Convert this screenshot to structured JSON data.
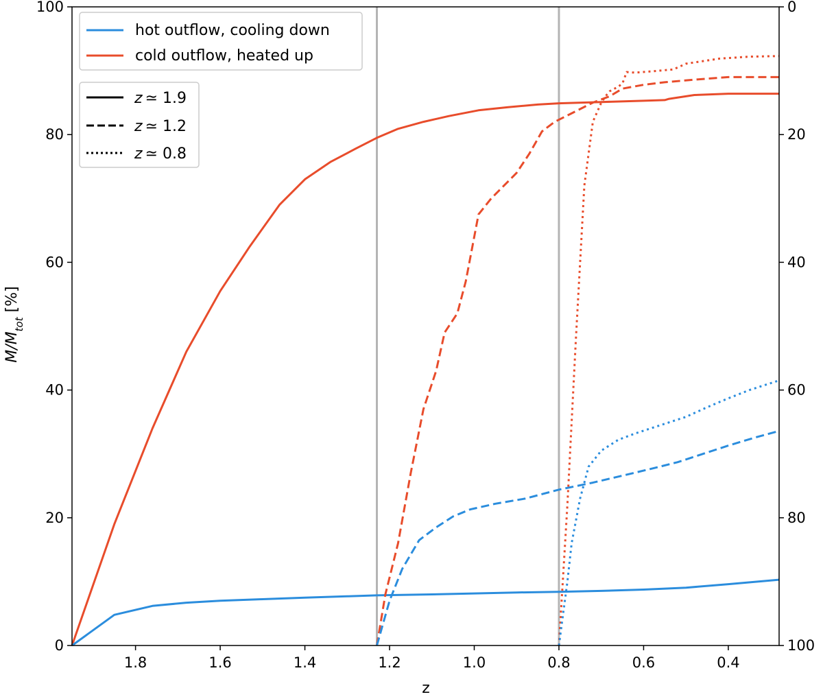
{
  "chart_data": {
    "type": "line",
    "xlabel": "z",
    "ylabel_main": "M/M",
    "ylabel_sub": "tot",
    "ylabel_unit": " [%]",
    "xlim": [
      1.95,
      0.28
    ],
    "ylim": [
      0,
      100
    ],
    "right_ylim": [
      100,
      0
    ],
    "x_ticks": [
      1.8,
      1.6,
      1.4,
      1.2,
      1.0,
      0.8,
      0.6,
      0.4
    ],
    "x_tick_labels": [
      "1.8",
      "1.6",
      "1.4",
      "1.2",
      "1.0",
      "0.8",
      "0.6",
      "0.4"
    ],
    "y_ticks": [
      0,
      20,
      40,
      60,
      80,
      100
    ],
    "y_tick_labels": [
      "0",
      "20",
      "40",
      "60",
      "80",
      "100"
    ],
    "right_y_ticks": [
      100,
      80,
      60,
      40,
      20,
      0
    ],
    "right_y_tick_labels": [
      "100",
      "80",
      "60",
      "40",
      "20",
      "0"
    ],
    "vlines": [
      1.23,
      0.8
    ],
    "grid": false,
    "colors": {
      "hot": "#2b8ddd",
      "cold": "#e84c2b",
      "vline": "#b4b4b4"
    },
    "legend_colors": {
      "placement": "top-left",
      "entries": [
        {
          "label": "hot outflow, cooling down",
          "color": "#2b8ddd"
        },
        {
          "label": "cold outflow, heated up",
          "color": "#e84c2b"
        }
      ]
    },
    "legend_styles": {
      "placement": "upper-left, below color legend",
      "entries": [
        {
          "symbol": "z",
          "label": "≃ 1.9",
          "dash": "solid"
        },
        {
          "symbol": "z",
          "label": "≃ 1.2",
          "dash": "dashed"
        },
        {
          "symbol": "z",
          "label": "≃ 0.8",
          "dash": "dotted"
        }
      ]
    },
    "series": [
      {
        "color_key": "cold",
        "dash": "solid",
        "x": [
          1.95,
          1.85,
          1.76,
          1.68,
          1.6,
          1.53,
          1.46,
          1.4,
          1.34,
          1.28,
          1.23,
          1.18,
          1.12,
          1.06,
          0.99,
          0.92,
          0.85,
          0.8,
          0.7,
          0.6,
          0.55,
          0.54,
          0.48,
          0.4,
          0.28
        ],
        "y": [
          0,
          19,
          34,
          46,
          55.5,
          62.5,
          69,
          73,
          75.7,
          77.8,
          79.5,
          80.9,
          82,
          82.9,
          83.8,
          84.3,
          84.7,
          84.9,
          85.1,
          85.3,
          85.4,
          85.6,
          86.2,
          86.4,
          86.4
        ]
      },
      {
        "color_key": "hot",
        "dash": "solid",
        "x": [
          1.95,
          1.85,
          1.76,
          1.68,
          1.6,
          1.5,
          1.4,
          1.3,
          1.23,
          1.1,
          1.0,
          0.9,
          0.8,
          0.7,
          0.6,
          0.5,
          0.4,
          0.28
        ],
        "y": [
          0,
          4.8,
          6.2,
          6.7,
          7.0,
          7.25,
          7.5,
          7.7,
          7.85,
          8.0,
          8.15,
          8.3,
          8.4,
          8.55,
          8.75,
          9.05,
          9.6,
          10.3
        ]
      },
      {
        "color_key": "cold",
        "dash": "dashed",
        "x": [
          1.23,
          1.21,
          1.18,
          1.15,
          1.12,
          1.09,
          1.07,
          1.04,
          1.02,
          0.99,
          0.96,
          0.93,
          0.9,
          0.87,
          0.84,
          0.81,
          0.78,
          0.75,
          0.72,
          0.68,
          0.65,
          0.6,
          0.55,
          0.48,
          0.4,
          0.28
        ],
        "y": [
          0,
          8,
          16,
          27,
          37,
          43,
          49,
          52,
          57,
          67.5,
          70,
          72,
          74,
          77,
          80.5,
          82,
          83,
          84,
          85,
          86,
          87.2,
          87.8,
          88.2,
          88.6,
          89,
          89
        ]
      },
      {
        "color_key": "hot",
        "dash": "dashed",
        "x": [
          1.23,
          1.2,
          1.17,
          1.13,
          1.09,
          1.05,
          1.01,
          0.95,
          0.88,
          0.8,
          0.72,
          0.65,
          0.58,
          0.52,
          0.46,
          0.4,
          0.34,
          0.28
        ],
        "y": [
          0,
          7,
          12,
          16.5,
          18.5,
          20.2,
          21.3,
          22.2,
          23.0,
          24.4,
          25.5,
          26.6,
          27.7,
          28.7,
          30.0,
          31.3,
          32.5,
          33.6
        ]
      },
      {
        "color_key": "cold",
        "dash": "dotted",
        "x": [
          0.8,
          0.78,
          0.76,
          0.74,
          0.72,
          0.7,
          0.69,
          0.68,
          0.66,
          0.65,
          0.64,
          0.62,
          0.58,
          0.53,
          0.5,
          0.46,
          0.42,
          0.35,
          0.28
        ],
        "y": [
          0,
          22,
          48,
          72,
          82,
          85,
          86,
          86.8,
          87.5,
          88,
          89.8,
          89.7,
          89.9,
          90.2,
          91.1,
          91.5,
          91.9,
          92.2,
          92.3
        ]
      },
      {
        "color_key": "hot",
        "dash": "dotted",
        "x": [
          0.8,
          0.79,
          0.78,
          0.77,
          0.75,
          0.73,
          0.7,
          0.66,
          0.62,
          0.56,
          0.5,
          0.45,
          0.4,
          0.35,
          0.28
        ],
        "y": [
          0,
          5,
          10,
          16,
          23,
          28,
          30.5,
          32.2,
          33.2,
          34.5,
          35.8,
          37.3,
          38.7,
          40.0,
          41.5
        ]
      }
    ]
  }
}
